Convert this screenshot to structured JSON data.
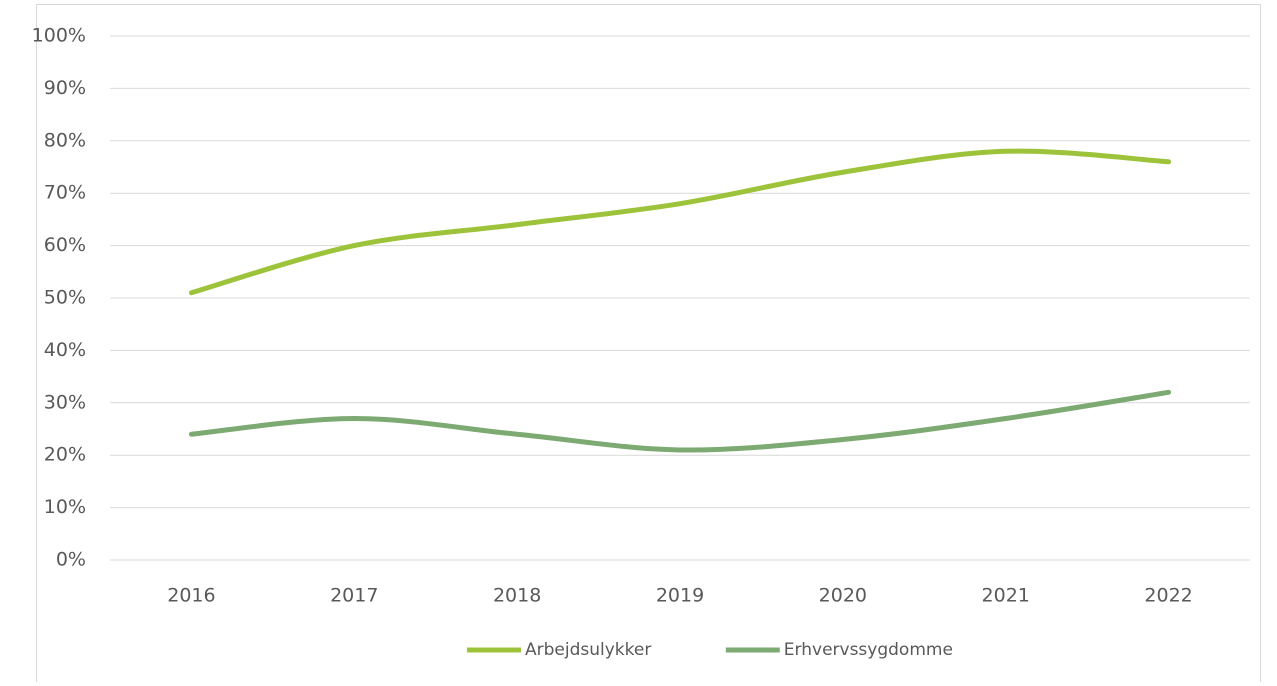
{
  "chart_data": {
    "type": "line",
    "categories": [
      "2016",
      "2017",
      "2018",
      "2019",
      "2020",
      "2021",
      "2022"
    ],
    "series": [
      {
        "name": "Arbejdsulykker",
        "color": "#9dc33b",
        "values": [
          51,
          60,
          64,
          68,
          74,
          78,
          76
        ]
      },
      {
        "name": "Erhvervssygdomme",
        "color": "#7daa72",
        "values": [
          24,
          27,
          24,
          21,
          23,
          27,
          32
        ]
      }
    ],
    "ylim": [
      0,
      100
    ],
    "yticks": [
      {
        "value": 0,
        "label": "0%"
      },
      {
        "value": 10,
        "label": "10%"
      },
      {
        "value": 20,
        "label": "20%"
      },
      {
        "value": 30,
        "label": "30%"
      },
      {
        "value": 40,
        "label": "40%"
      },
      {
        "value": 50,
        "label": "50%"
      },
      {
        "value": 60,
        "label": "60%"
      },
      {
        "value": 70,
        "label": "70%"
      },
      {
        "value": 80,
        "label": "80%"
      },
      {
        "value": 90,
        "label": "90%"
      },
      {
        "value": 100,
        "label": "100%"
      }
    ],
    "grid": true,
    "smooth": true,
    "legend": "bottom"
  }
}
